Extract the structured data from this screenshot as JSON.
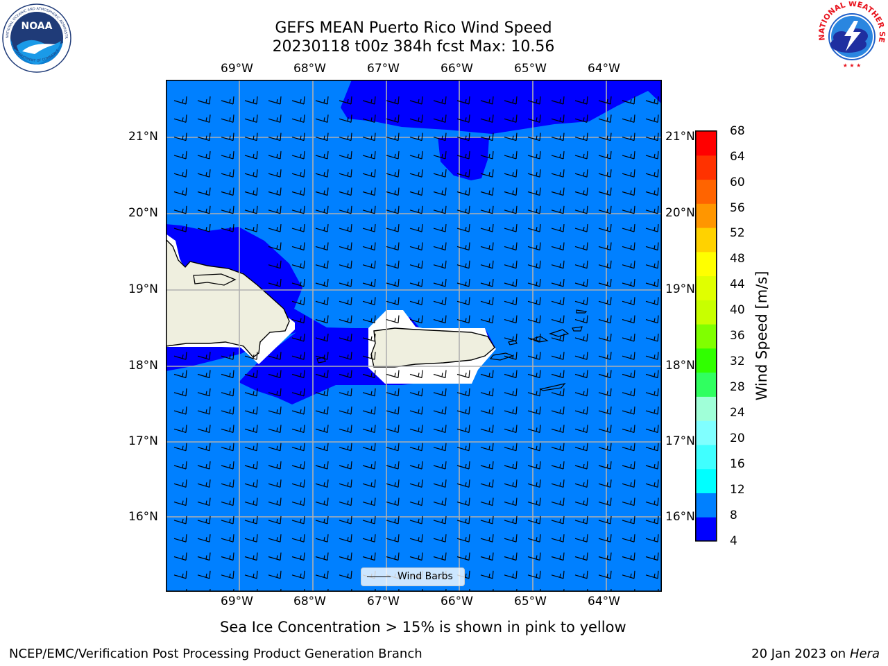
{
  "header": {
    "title_line1": "GEFS MEAN Puerto Rico Wind Speed",
    "title_line2": "20230118 t00z 384h fcst   Max: 10.56"
  },
  "logos": {
    "left": {
      "name": "noaa-logo",
      "text": "NOAA",
      "ring_text": "NATIONAL OCEANIC AND ATMOSPHERIC ADMINISTRATION · U.S. DEPARTMENT OF COMMERCE"
    },
    "right": {
      "name": "nws-logo",
      "ring_text": "NATIONAL WEATHER SERVICE"
    }
  },
  "map": {
    "lon_labels": [
      "69°W",
      "68°W",
      "67°W",
      "66°W",
      "65°W",
      "64°W"
    ],
    "lat_labels": [
      "21°N",
      "20°N",
      "19°N",
      "18°N",
      "17°N",
      "16°N"
    ],
    "colors": {
      "fill_4_8": "#0000ff",
      "fill_8_12": "#0080ff",
      "land": "#efefdf",
      "masked": "#ffffff",
      "grid": "#b0b0b0"
    }
  },
  "legend": {
    "label": "Wind Barbs"
  },
  "colorbar": {
    "title": "Wind Speed [m/s]",
    "ticks": [
      "68",
      "64",
      "60",
      "56",
      "52",
      "48",
      "44",
      "40",
      "36",
      "32",
      "28",
      "24",
      "20",
      "16",
      "12",
      "8",
      "4"
    ],
    "colors": [
      "#0000ff",
      "#0080ff",
      "#00ffff",
      "#40ffff",
      "#80ffff",
      "#a0ffd8",
      "#30ff60",
      "#30ff00",
      "#80ff00",
      "#c8ff00",
      "#e0ff00",
      "#ffff00",
      "#ffd200",
      "#ff9600",
      "#ff6400",
      "#ff3200",
      "#ff0000"
    ]
  },
  "bottom_note": "Sea Ice Concentration > 15% is shown in pink to yellow",
  "footer": {
    "left": "NCEP/EMC/Verification Post Processing Product Generation Branch",
    "right_date": "20 Jan 2023 on",
    "right_machine": "Hera"
  }
}
